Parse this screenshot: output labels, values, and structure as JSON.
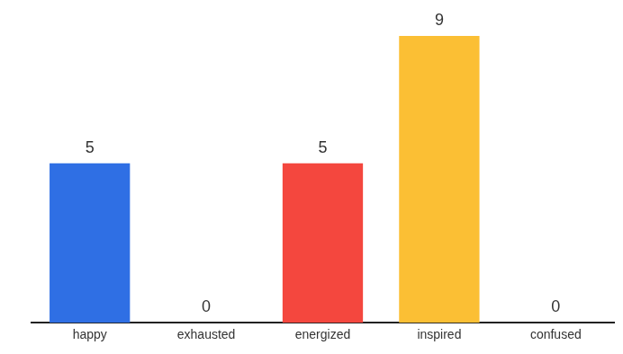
{
  "chart_data": {
    "type": "bar",
    "categories": [
      "happy",
      "exhausted",
      "energized",
      "inspired",
      "confused"
    ],
    "values": [
      5,
      0,
      5,
      9,
      0
    ],
    "colors": [
      "#2f6fe4",
      "#9e9e9e",
      "#f4473e",
      "#fbbf34",
      "#9e9e9e"
    ],
    "ylim": [
      0,
      9
    ],
    "grid": false,
    "data_labels": true,
    "tick_labels": "x"
  }
}
